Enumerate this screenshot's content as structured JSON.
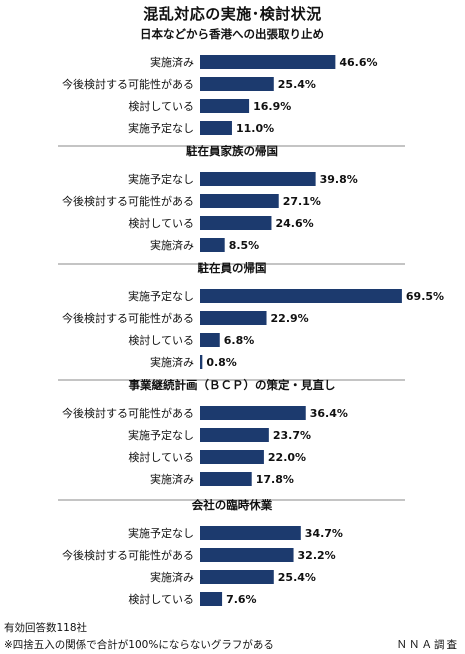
{
  "title": "混乱対応の実施･検討状況",
  "colors": {
    "bar": "#1c3a6e",
    "divider": "#888888",
    "text": "#111111"
  },
  "chart_data": [
    {
      "type": "bar",
      "orientation": "horizontal",
      "title": "日本などから香港への出張取り止め",
      "unit": "%",
      "categories": [
        "実施済み",
        "今後検討する可能性がある",
        "検討している",
        "実施予定なし"
      ],
      "values": [
        46.6,
        25.4,
        16.9,
        11.0
      ],
      "value_labels": [
        "46.6%",
        "25.4%",
        "16.9%",
        "11.0%"
      ]
    },
    {
      "type": "bar",
      "orientation": "horizontal",
      "title": "駐在員家族の帰国",
      "unit": "%",
      "categories": [
        "実施予定なし",
        "今後検討する可能性がある",
        "検討している",
        "実施済み"
      ],
      "values": [
        39.8,
        27.1,
        24.6,
        8.5
      ],
      "value_labels": [
        "39.8%",
        "27.1%",
        "24.6%",
        "8.5%"
      ]
    },
    {
      "type": "bar",
      "orientation": "horizontal",
      "title": "駐在員の帰国",
      "unit": "%",
      "categories": [
        "実施予定なし",
        "今後検討する可能性がある",
        "検討している",
        "実施済み"
      ],
      "values": [
        69.5,
        22.9,
        6.8,
        0.8
      ],
      "value_labels": [
        "69.5%",
        "22.9%",
        "6.8%",
        "0.8%"
      ]
    },
    {
      "type": "bar",
      "orientation": "horizontal",
      "title": "事業継続計画（ＢＣＰ）の策定・見直し",
      "unit": "%",
      "categories": [
        "今後検討する可能性がある",
        "実施予定なし",
        "検討している",
        "実施済み"
      ],
      "values": [
        36.4,
        23.7,
        22.0,
        17.8
      ],
      "value_labels": [
        "36.4%",
        "23.7%",
        "22.0%",
        "17.8%"
      ]
    },
    {
      "type": "bar",
      "orientation": "horizontal",
      "title": "会社の臨時休業",
      "unit": "%",
      "categories": [
        "実施予定なし",
        "今後検討する可能性がある",
        "実施済み",
        "検討している"
      ],
      "values": [
        34.7,
        32.2,
        25.4,
        7.6
      ],
      "value_labels": [
        "34.7%",
        "32.2%",
        "25.4%",
        "7.6%"
      ]
    }
  ],
  "footer": {
    "responses": "有効回答数118社",
    "note": "※四捨五入の関係で合計が100%にならないグラフがある",
    "source": "ＮＮＡ調査"
  }
}
